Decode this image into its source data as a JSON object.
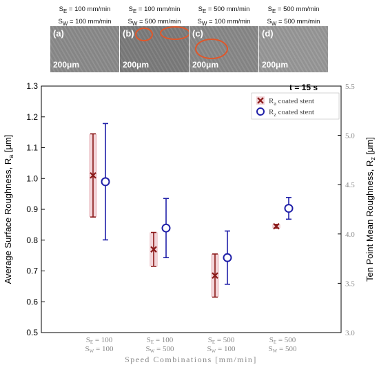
{
  "panels": [
    {
      "letter": "(a)",
      "se": "S",
      "se_sub": "E",
      "se_val": " = 100 mm/min",
      "sw": "S",
      "sw_sub": "W",
      "sw_val": " = 100 mm/min",
      "scale": "200μm",
      "bg": "#8c8c8c"
    },
    {
      "letter": "(b)",
      "se": "S",
      "se_sub": "E",
      "se_val": " = 100 mm/min",
      "sw": "S",
      "sw_sub": "W",
      "sw_val": " = 500 mm/min",
      "scale": "200μm",
      "bg": "#7d7d7d"
    },
    {
      "letter": "(c)",
      "se": "S",
      "se_sub": "E",
      "se_val": " = 500 mm/min",
      "sw": "S",
      "sw_sub": "W",
      "sw_val": " = 100 mm/min",
      "scale": "200μm",
      "bg": "#8a8a8a"
    },
    {
      "letter": "(d)",
      "se": "S",
      "se_sub": "E",
      "se_val": " = 500 mm/min",
      "sw": "S",
      "sw_sub": "W",
      "sw_val": " = 500 mm/min",
      "scale": "200μm",
      "bg": "#9a9a9a"
    }
  ],
  "chart_data": {
    "type": "scatter",
    "annotation": "t = 15 s",
    "xlabel": "Speed Combinations [mm/min]",
    "categories": [
      {
        "line1": "S",
        "line1_sub": "E",
        "line1_val": " = 100",
        "line2": "S",
        "line2_sub": "W",
        "line2_val": " = 100"
      },
      {
        "line1": "S",
        "line1_sub": "E",
        "line1_val": " = 100",
        "line2": "S",
        "line2_sub": "W",
        "line2_val": " = 500"
      },
      {
        "line1": "S",
        "line1_sub": "E",
        "line1_val": " = 500",
        "line2": "S",
        "line2_sub": "W",
        "line2_val": " = 100"
      },
      {
        "line1": "S",
        "line1_sub": "E",
        "line1_val": " = 500",
        "line2": "S",
        "line2_sub": "W",
        "line2_val": " = 500"
      }
    ],
    "y_left": {
      "label": "Average Surface Roughness, R",
      "label_sub": "a",
      "label_unit": " [μm]",
      "range": [
        0.5,
        1.3
      ],
      "ticks": [
        "0.5",
        "0.6",
        "0.7",
        "0.8",
        "0.9",
        "1.0",
        "1.1",
        "1.2",
        "1.3"
      ]
    },
    "y_right": {
      "label": "Ten Point Mean Roughness, R",
      "label_sub": "z",
      "label_unit": " [μm]",
      "range": [
        3.0,
        5.5
      ],
      "ticks": [
        "3.0",
        "3.5",
        "4.0",
        "4.5",
        "5.0",
        "5.5"
      ]
    },
    "legend_position": "top-right",
    "series": [
      {
        "name": "R",
        "name_sub": "a",
        "name_rest": " coated stent",
        "axis": "left",
        "marker": "x",
        "color": "#8b1a1a",
        "shade": "#f2d4d8",
        "values": [
          1.01,
          0.77,
          0.685,
          0.845
        ],
        "errors": [
          0.135,
          0.055,
          0.07,
          0.006
        ]
      },
      {
        "name": "R",
        "name_sub": "z",
        "name_rest": " coated stent",
        "axis": "right",
        "marker": "o",
        "color": "#1f1fa8",
        "values": [
          4.53,
          4.06,
          3.76,
          4.26
        ],
        "errors": [
          0.59,
          0.3,
          0.27,
          0.11
        ]
      }
    ]
  }
}
